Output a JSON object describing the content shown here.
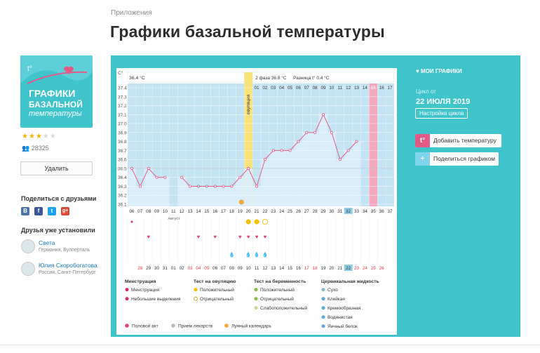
{
  "breadcrumb": "Приложения",
  "page_title": "Графики базальной температуры",
  "app": {
    "logo_line1": "ГРАФИКИ",
    "logo_line2": "БАЗАЛЬНОЙ",
    "logo_line3": "температуры",
    "logo_mark": "t°",
    "rating": 3,
    "rating_max": 5,
    "installs": "28325",
    "delete_label": "Удалить"
  },
  "share": {
    "heading": "Поделиться с друзьями",
    "networks": [
      "В",
      "f",
      "t",
      "g+"
    ]
  },
  "friends": {
    "heading": "Друзья уже установили",
    "items": [
      {
        "name": "Света",
        "location": "Германия, Вупперталь"
      },
      {
        "name": "Юлия Скоробогатова",
        "location": "Россия, Санкт-Петербург"
      }
    ]
  },
  "sidebar": {
    "my_charts": "МОИ ГРАФИКИ",
    "cycle_from_label": "Цикл от",
    "cycle_date": "22 ИЮЛЯ 2019",
    "setup_label": "Настройка цикла",
    "add_temp_label": "Добавить температуру",
    "add_temp_icon": "t°",
    "share_chart_label": "Поделиться графиком",
    "share_icon": "+"
  },
  "chart_data": {
    "type": "line",
    "unit": "C°",
    "phase1": "36.4 °C",
    "ovulation_label": "овуляция",
    "phase2": "2 фаза  36.8 °C",
    "difference": "Разница t°  0.4 °C",
    "y_ticks": [
      "37.4",
      "37.3",
      "37.2",
      "37.1",
      "37.0",
      "36.9",
      "36.8",
      "36.7",
      "36.6",
      "36.5",
      "36.4",
      "36.3",
      "36.2",
      "36.1"
    ],
    "ylim": [
      36.1,
      37.4
    ],
    "cycle_days": [
      "01",
      "02",
      "03",
      "04",
      "05",
      "06",
      "07",
      "08",
      "09",
      "10",
      "11",
      "12",
      "13",
      "14",
      "15",
      "16",
      "17"
    ],
    "dates": [
      "06",
      "07",
      "08",
      "09",
      "10",
      "11",
      "12",
      "13",
      "14",
      "15",
      "16",
      "17",
      "18",
      "19",
      "20",
      "21",
      "22",
      "23",
      "24",
      "25",
      "26",
      "27",
      "28",
      "29",
      "30",
      "31",
      "32",
      "33",
      "34",
      "35",
      "36",
      "37"
    ],
    "month_label": "Август",
    "bottom_dates": [
      "28",
      "29",
      "30",
      "31",
      "01",
      "02",
      "03",
      "04",
      "05",
      "06",
      "07",
      "08",
      "09",
      "10",
      "11",
      "12",
      "13",
      "14",
      "15",
      "16",
      "17",
      "18",
      "19",
      "20",
      "21",
      "22",
      "23",
      "24",
      "25",
      "26"
    ],
    "temperatures": [
      36.5,
      36.3,
      36.5,
      36.4,
      36.4,
      null,
      36.4,
      36.3,
      36.3,
      36.3,
      36.3,
      36.3,
      36.3,
      36.4,
      36.5,
      36.3,
      36.6,
      36.7,
      36.7,
      36.7,
      36.8,
      36.9,
      36.9,
      37.1,
      36.9,
      36.6,
      36.7,
      36.8,
      null,
      null,
      null,
      null
    ],
    "today_index": 26,
    "ovulation_index": 14,
    "highlight_index": 29
  },
  "legend": {
    "menstruation": {
      "title": "Менструация",
      "items": [
        "Менструация",
        "Небольшие выделения"
      ]
    },
    "ovulation_test": {
      "title": "Тест на овуляцию",
      "items": [
        "Положительный",
        "Отрицательный"
      ]
    },
    "pregnancy_test": {
      "title": "Тест на беременность",
      "items": [
        "Положительный",
        "Отрицательный",
        "Слабоположительный"
      ]
    },
    "cervical": {
      "title": "Цервикальная жидкость",
      "items": [
        "Сухо",
        "Клейкая",
        "Кремообразная",
        "Водянистая",
        "Яичный белок"
      ]
    },
    "extra": [
      "Половой акт",
      "Прием лекарств",
      "Лунный календарь"
    ]
  },
  "colors": {
    "teal": "#40c4cc",
    "pink": "#e25b87",
    "plot": "#c4e4f4",
    "bar": "#d9eefa",
    "ovulation": "#f7e37a"
  }
}
